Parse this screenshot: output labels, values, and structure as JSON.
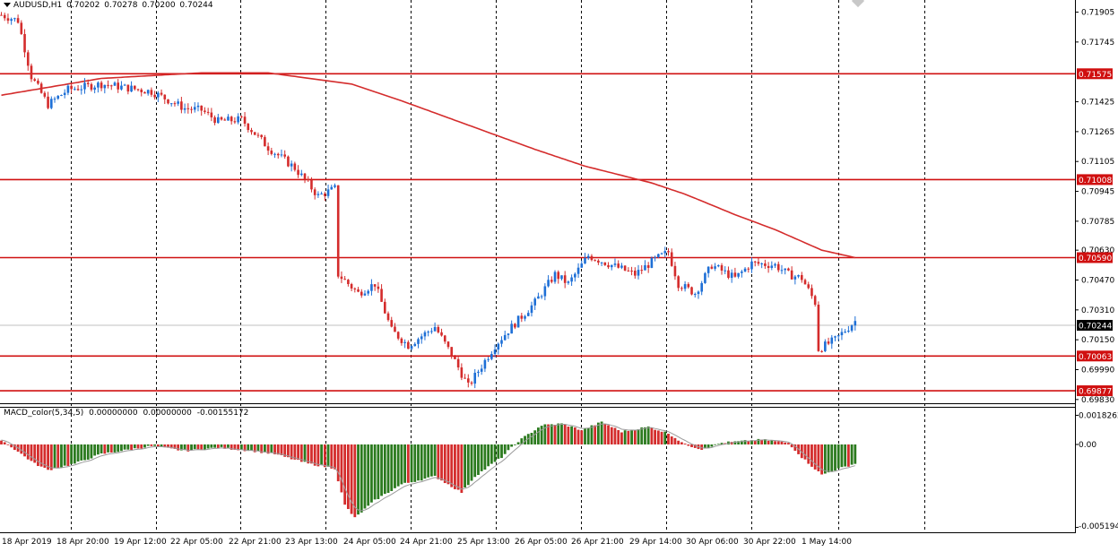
{
  "header": {
    "symbol_tf": "AUDUSD,H1",
    "open": "0.70202",
    "high": "0.70278",
    "low": "0.70200",
    "close": "0.70244"
  },
  "macd_header": {
    "name": "MACD_color(5,34,5)",
    "v1": "0.00000000",
    "v2": "0.00000000",
    "v3": "-0.00155172"
  },
  "colors": {
    "bull": "#1e6fd6",
    "bear": "#d42c2c",
    "level_line": "#d01010",
    "ma": "#d42c2c",
    "hist_green": "#2b7a1e",
    "hist_red": "#d42c2c",
    "signal": "#9a9a9a",
    "grid": "#000000",
    "current_bg": "#000000",
    "level_bg": "#d01010"
  },
  "chart_data": [
    {
      "type": "candlestick",
      "title": "AUDUSD,H1",
      "y_ticks": [
        "0.71905",
        "0.71745",
        "0.71425",
        "0.71265",
        "0.71105",
        "0.70945",
        "0.70785",
        "0.70630",
        "0.70470",
        "0.70310",
        "0.70150",
        "0.69990",
        "0.69830"
      ],
      "ylim": [
        0.6981,
        0.7197
      ],
      "x_labels": [
        "18 Apr 2019",
        "18 Apr 20:00",
        "19 Apr 12:00",
        "22 Apr 05:00",
        "22 Apr 21:00",
        "23 Apr 13:00",
        "24 Apr 05:00",
        "24 Apr 21:00",
        "25 Apr 13:00",
        "26 Apr 05:00",
        "26 Apr 21:00",
        "29 Apr 14:00",
        "30 Apr 06:00",
        "30 Apr 22:00",
        "1 May 14:00"
      ],
      "levels": [
        "0.71575",
        "0.71008",
        "0.70590",
        "0.70063",
        "0.69877"
      ],
      "current_price": "0.70244",
      "ma_points": [
        [
          0,
          0.7146
        ],
        [
          30,
          0.7155
        ],
        [
          60,
          0.7158
        ],
        [
          80,
          0.7158
        ],
        [
          105,
          0.7152
        ],
        [
          120,
          0.7143
        ],
        [
          140,
          0.713
        ],
        [
          160,
          0.7117
        ],
        [
          175,
          0.7108
        ],
        [
          195,
          0.7099
        ],
        [
          205,
          0.7093
        ],
        [
          220,
          0.7082
        ],
        [
          232,
          0.7074
        ],
        [
          246,
          0.7063
        ],
        [
          256,
          0.7059
        ]
      ],
      "anchors": [
        [
          0,
          0.7189
        ],
        [
          5,
          0.7186
        ],
        [
          9,
          0.7156
        ],
        [
          14,
          0.7141
        ],
        [
          20,
          0.7149
        ],
        [
          30,
          0.7152
        ],
        [
          45,
          0.7148
        ],
        [
          55,
          0.7139
        ],
        [
          60,
          0.7138
        ],
        [
          65,
          0.7132
        ],
        [
          72,
          0.7133
        ],
        [
          80,
          0.7118
        ],
        [
          88,
          0.7107
        ],
        [
          95,
          0.7092
        ],
        [
          100,
          0.7096
        ],
        [
          101,
          0.705
        ],
        [
          107,
          0.704
        ],
        [
          112,
          0.7045
        ],
        [
          117,
          0.702
        ],
        [
          122,
          0.7012
        ],
        [
          130,
          0.7022
        ],
        [
          135,
          0.7007
        ],
        [
          140,
          0.699
        ],
        [
          148,
          0.7012
        ],
        [
          152,
          0.702
        ],
        [
          160,
          0.7035
        ],
        [
          166,
          0.705
        ],
        [
          170,
          0.7045
        ],
        [
          176,
          0.706
        ],
        [
          183,
          0.7055
        ],
        [
          190,
          0.705
        ],
        [
          196,
          0.7058
        ],
        [
          200,
          0.7062
        ],
        [
          203,
          0.7045
        ],
        [
          208,
          0.704
        ],
        [
          213,
          0.7055
        ],
        [
          220,
          0.7048
        ],
        [
          225,
          0.7056
        ],
        [
          232,
          0.7055
        ],
        [
          236,
          0.705
        ],
        [
          240,
          0.7048
        ],
        [
          244,
          0.7035
        ],
        [
          245,
          0.701
        ],
        [
          250,
          0.7015
        ],
        [
          256,
          0.7025
        ]
      ],
      "macd_axis": [
        "0.0018262",
        "0.00",
        "-0.0051944"
      ],
      "macd_ylim": [
        -0.0055,
        0.0023
      ],
      "macd_anchors": [
        [
          0,
          0.0003
        ],
        [
          4,
          -0.0003
        ],
        [
          10,
          -0.0012
        ],
        [
          14,
          -0.0016
        ],
        [
          22,
          -0.0012
        ],
        [
          30,
          -0.0006
        ],
        [
          45,
          -0.0001
        ],
        [
          55,
          -0.0004
        ],
        [
          65,
          -0.0002
        ],
        [
          75,
          -0.0004
        ],
        [
          82,
          -0.0006
        ],
        [
          92,
          -0.0012
        ],
        [
          100,
          -0.0015
        ],
        [
          103,
          -0.0038
        ],
        [
          106,
          -0.0046
        ],
        [
          112,
          -0.0035
        ],
        [
          120,
          -0.0025
        ],
        [
          130,
          -0.002
        ],
        [
          138,
          -0.003
        ],
        [
          142,
          -0.002
        ],
        [
          150,
          -0.0008
        ],
        [
          155,
          0.0002
        ],
        [
          162,
          0.0012
        ],
        [
          168,
          0.0013
        ],
        [
          174,
          0.0009
        ],
        [
          180,
          0.0014
        ],
        [
          186,
          0.0008
        ],
        [
          194,
          0.0011
        ],
        [
          200,
          0.0007
        ],
        [
          205,
          0.0
        ],
        [
          210,
          -0.0003
        ],
        [
          216,
          0.0001
        ],
        [
          222,
          0.0002
        ],
        [
          228,
          0.0003
        ],
        [
          236,
          0.0001
        ],
        [
          240,
          -0.0008
        ],
        [
          246,
          -0.0019
        ],
        [
          250,
          -0.0016
        ],
        [
          256,
          -0.0012
        ]
      ]
    }
  ]
}
